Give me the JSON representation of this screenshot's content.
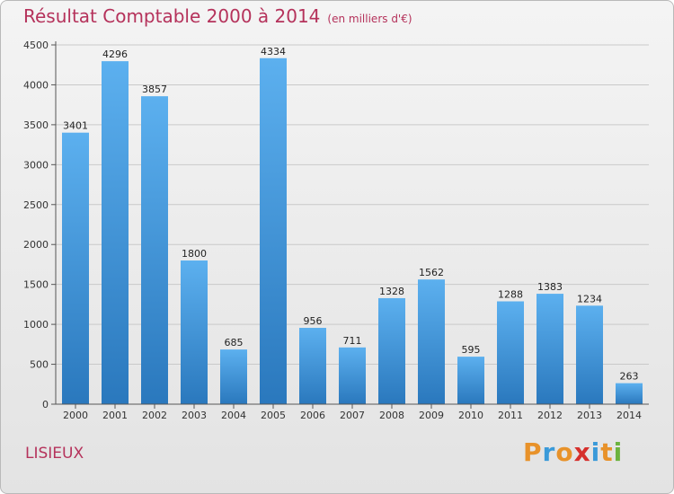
{
  "header": {
    "title": "Résultat Comptable 2000 à 2014",
    "unit": "(en milliers d'€)"
  },
  "footer": {
    "city": "LISIEUX",
    "logo_letters": [
      "P",
      "r",
      "o",
      "x",
      "i",
      "t",
      "i"
    ],
    "logo_colors": [
      "#e8922a",
      "#3a9ad9",
      "#e8922a",
      "#d6302c",
      "#3a9ad9",
      "#e8922a",
      "#6cb33f"
    ]
  },
  "chart_data": {
    "type": "bar",
    "title": "Résultat Comptable 2000 à 2014",
    "subtitle": "(en milliers d'€)",
    "xlabel": "",
    "ylabel": "",
    "categories": [
      "2000",
      "2001",
      "2002",
      "2003",
      "2004",
      "2005",
      "2006",
      "2007",
      "2008",
      "2009",
      "2010",
      "2011",
      "2012",
      "2013",
      "2014"
    ],
    "values": [
      3401,
      4296,
      3857,
      1800,
      685,
      4334,
      956,
      711,
      1328,
      1562,
      595,
      1288,
      1383,
      1234,
      263
    ],
    "ylim": [
      0,
      4500
    ],
    "yticks": [
      0,
      500,
      1000,
      1500,
      2000,
      2500,
      3000,
      3500,
      4000,
      4500
    ],
    "grid": true,
    "bar_color": "#3f93d6",
    "title_color": "#b5325b"
  }
}
